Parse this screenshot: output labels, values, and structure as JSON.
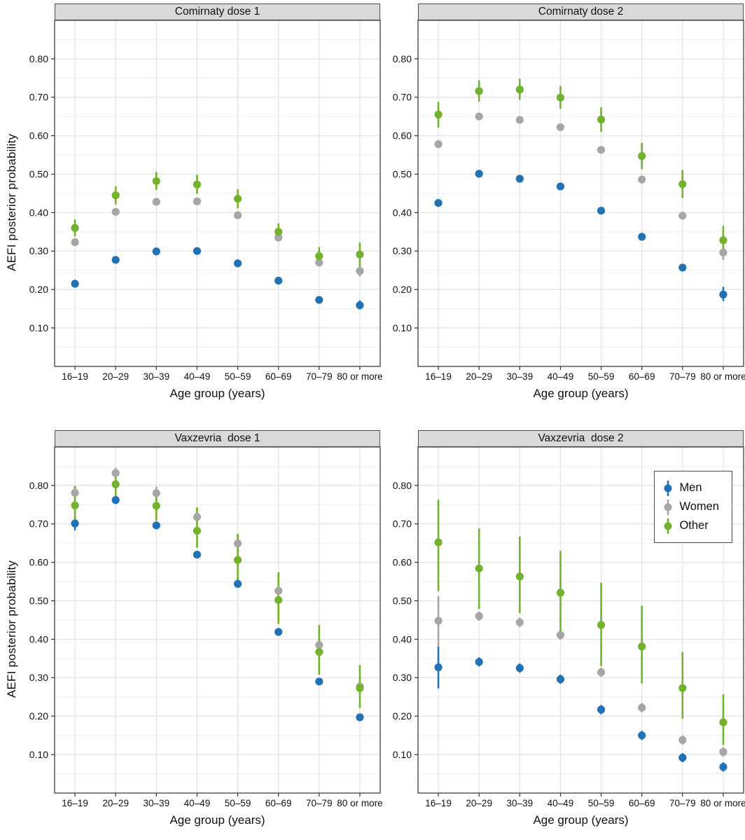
{
  "chart_data": {
    "type": "scatter",
    "subtype": "point-with-error-bars",
    "xlabel": "Age group (years)",
    "ylabel": "AEFI posterior probability",
    "categories": [
      "16–19",
      "20–29",
      "30–39",
      "40–49",
      "50–59",
      "60–69",
      "70–79",
      "80 or more"
    ],
    "ylim": [
      0.0,
      0.9
    ],
    "yticks": [
      0.1,
      0.2,
      0.3,
      0.4,
      0.5,
      0.6,
      0.7,
      0.8
    ],
    "minor_step": 0.05,
    "grid": "major-and-minor-horizontal, major-vertical-at-categories",
    "colors": {
      "Men": "#2171b5",
      "Women": "#a6a6a6",
      "Other": "#73b22e"
    },
    "legend": {
      "position": "inside top-right of Vaxzevria dose 2 panel",
      "items": [
        {
          "label": "Men",
          "color": "#2171b5"
        },
        {
          "label": "Women",
          "color": "#a6a6a6"
        },
        {
          "label": "Other",
          "color": "#73b22e"
        }
      ]
    },
    "panels": [
      {
        "title": "Comirnaty dose 1",
        "series": [
          {
            "name": "Men",
            "values": [
              0.215,
              0.277,
              0.299,
              0.3,
              0.268,
              0.223,
              0.173,
              0.159
            ],
            "lower": [
              0.206,
              0.268,
              0.29,
              0.291,
              0.259,
              0.214,
              0.164,
              0.148
            ],
            "upper": [
              0.224,
              0.286,
              0.308,
              0.309,
              0.277,
              0.232,
              0.182,
              0.172
            ]
          },
          {
            "name": "Women",
            "values": [
              0.323,
              0.402,
              0.428,
              0.429,
              0.393,
              0.335,
              0.27,
              0.248
            ],
            "lower": [
              0.314,
              0.393,
              0.419,
              0.42,
              0.384,
              0.326,
              0.261,
              0.234
            ],
            "upper": [
              0.332,
              0.411,
              0.437,
              0.438,
              0.402,
              0.344,
              0.279,
              0.262
            ]
          },
          {
            "name": "Other",
            "values": [
              0.36,
              0.445,
              0.482,
              0.473,
              0.436,
              0.35,
              0.287,
              0.291
            ],
            "lower": [
              0.338,
              0.421,
              0.459,
              0.449,
              0.411,
              0.329,
              0.266,
              0.26
            ],
            "upper": [
              0.382,
              0.468,
              0.506,
              0.498,
              0.461,
              0.372,
              0.31,
              0.322
            ]
          }
        ]
      },
      {
        "title": "Comirnaty dose 2",
        "series": [
          {
            "name": "Men",
            "values": [
              0.425,
              0.501,
              0.488,
              0.468,
              0.405,
              0.337,
              0.257,
              0.187
            ],
            "lower": [
              0.416,
              0.492,
              0.479,
              0.459,
              0.396,
              0.328,
              0.248,
              0.17
            ],
            "upper": [
              0.434,
              0.51,
              0.497,
              0.477,
              0.414,
              0.346,
              0.266,
              0.207
            ]
          },
          {
            "name": "Women",
            "values": [
              0.578,
              0.65,
              0.641,
              0.622,
              0.563,
              0.486,
              0.392,
              0.296
            ],
            "lower": [
              0.569,
              0.641,
              0.632,
              0.613,
              0.554,
              0.477,
              0.382,
              0.277
            ],
            "upper": [
              0.587,
              0.659,
              0.65,
              0.631,
              0.572,
              0.495,
              0.402,
              0.315
            ]
          },
          {
            "name": "Other",
            "values": [
              0.655,
              0.716,
              0.72,
              0.699,
              0.642,
              0.547,
              0.474,
              0.328
            ],
            "lower": [
              0.621,
              0.689,
              0.694,
              0.67,
              0.61,
              0.513,
              0.438,
              0.29
            ],
            "upper": [
              0.688,
              0.744,
              0.748,
              0.729,
              0.674,
              0.581,
              0.511,
              0.366
            ]
          }
        ]
      },
      {
        "title": "Vaxzevria  dose 1",
        "series": [
          {
            "name": "Men",
            "values": [
              0.701,
              0.762,
              0.696,
              0.62,
              0.544,
              0.419,
              0.29,
              0.197
            ],
            "lower": [
              0.683,
              0.753,
              0.687,
              0.611,
              0.535,
              0.41,
              0.281,
              0.188
            ],
            "upper": [
              0.717,
              0.771,
              0.705,
              0.629,
              0.553,
              0.428,
              0.299,
              0.206
            ]
          },
          {
            "name": "Women",
            "values": [
              0.781,
              0.832,
              0.78,
              0.718,
              0.649,
              0.526,
              0.385,
              0.277
            ],
            "lower": [
              0.764,
              0.815,
              0.761,
              0.699,
              0.63,
              0.505,
              0.363,
              0.266
            ],
            "upper": [
              0.799,
              0.846,
              0.797,
              0.739,
              0.669,
              0.547,
              0.408,
              0.288
            ]
          },
          {
            "name": "Other",
            "values": [
              0.748,
              0.803,
              0.747,
              0.682,
              0.606,
              0.502,
              0.367,
              0.273
            ],
            "lower": [
              0.698,
              0.772,
              0.708,
              0.638,
              0.553,
              0.44,
              0.308,
              0.221
            ],
            "upper": [
              0.797,
              0.838,
              0.786,
              0.743,
              0.674,
              0.574,
              0.437,
              0.333
            ]
          }
        ]
      },
      {
        "title": "Vaxzevria  dose 2",
        "series": [
          {
            "name": "Men",
            "values": [
              0.327,
              0.341,
              0.325,
              0.296,
              0.217,
              0.15,
              0.092,
              0.068
            ],
            "lower": [
              0.272,
              0.329,
              0.313,
              0.284,
              0.205,
              0.138,
              0.08,
              0.056
            ],
            "upper": [
              0.381,
              0.353,
              0.337,
              0.308,
              0.229,
              0.162,
              0.104,
              0.08
            ]
          },
          {
            "name": "Women",
            "values": [
              0.448,
              0.46,
              0.444,
              0.411,
              0.314,
              0.222,
              0.138,
              0.107
            ],
            "lower": [
              0.38,
              0.448,
              0.432,
              0.399,
              0.302,
              0.21,
              0.126,
              0.095
            ],
            "upper": [
              0.512,
              0.472,
              0.456,
              0.423,
              0.326,
              0.234,
              0.15,
              0.119
            ]
          },
          {
            "name": "Other",
            "values": [
              0.652,
              0.584,
              0.563,
              0.521,
              0.437,
              0.381,
              0.273,
              0.184
            ],
            "lower": [
              0.525,
              0.479,
              0.468,
              0.409,
              0.33,
              0.285,
              0.193,
              0.125
            ],
            "upper": [
              0.763,
              0.688,
              0.667,
              0.63,
              0.547,
              0.487,
              0.367,
              0.257
            ]
          }
        ]
      }
    ],
    "style": {
      "panel_border": "#4d4d4d",
      "strip_bg": "#d9d9d9",
      "grid_major": "#e2e2e2",
      "grid_minor": "#f1f1f1",
      "tick_color": "#333333"
    }
  }
}
